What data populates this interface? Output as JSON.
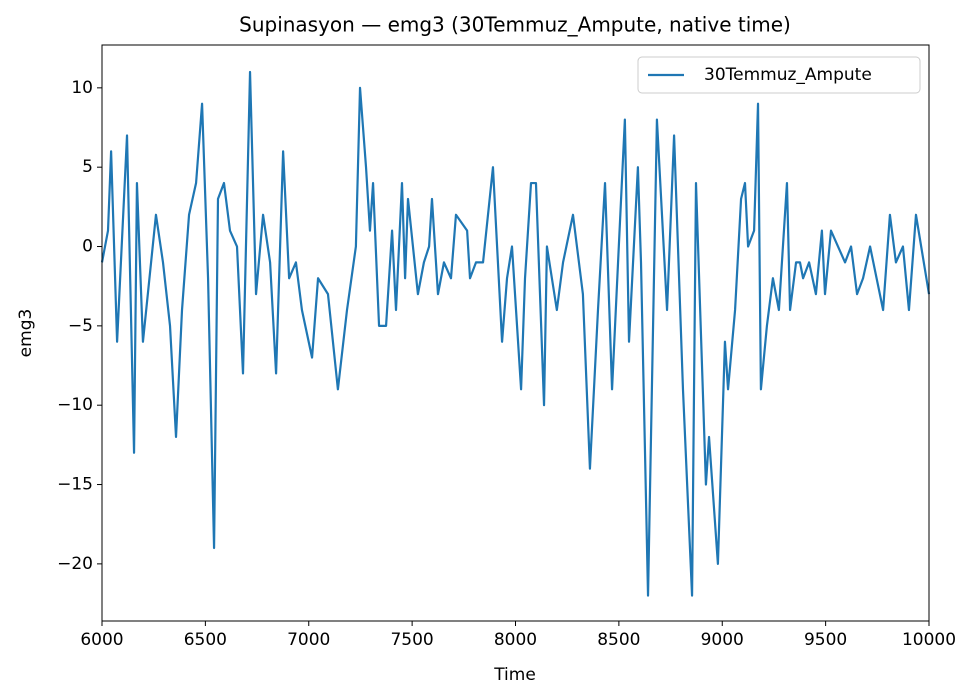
{
  "chart_data": {
    "type": "line",
    "title": "Supinasyon — emg3 (30Temmuz_Ampute, native time)",
    "x_label": "Time",
    "y_label": "emg3",
    "x": [
      6000,
      6029,
      6044,
      6073,
      6121,
      6155,
      6169,
      6198,
      6261,
      6295,
      6329,
      6358,
      6387,
      6421,
      6455,
      6484,
      6513,
      6542,
      6561,
      6590,
      6619,
      6653,
      6682,
      6716,
      6745,
      6779,
      6813,
      6842,
      6876,
      6905,
      6938,
      6967,
      7016,
      7045,
      7093,
      7141,
      7185,
      7228,
      7248,
      7277,
      7296,
      7311,
      7340,
      7374,
      7403,
      7422,
      7451,
      7466,
      7480,
      7528,
      7557,
      7582,
      7596,
      7625,
      7654,
      7688,
      7712,
      7766,
      7780,
      7809,
      7843,
      7891,
      7935,
      7959,
      7983,
      8027,
      8046,
      8075,
      8099,
      8138,
      8152,
      8200,
      8230,
      8278,
      8326,
      8360,
      8399,
      8433,
      8467,
      8496,
      8529,
      8549,
      8592,
      8607,
      8641,
      8684,
      8733,
      8767,
      8810,
      8854,
      8873,
      8921,
      8936,
      8979,
      9013,
      9028,
      9062,
      9091,
      9110,
      9125,
      9154,
      9173,
      9187,
      9216,
      9245,
      9274,
      9313,
      9328,
      9357,
      9376,
      9391,
      9420,
      9453,
      9482,
      9497,
      9526,
      9560,
      9594,
      9623,
      9652,
      9681,
      9715,
      9778,
      9811,
      9840,
      9874,
      9903,
      9937,
      10000
    ],
    "series": [
      {
        "name": "30Temmuz_Ampute",
        "color": "#1f77b4",
        "values": [
          -1,
          1,
          6,
          -6,
          7,
          -13,
          4,
          -6,
          2,
          -1,
          -5,
          -12,
          -4,
          2,
          4,
          9,
          -2,
          -19,
          3,
          4,
          1,
          0,
          -8,
          11,
          -3,
          2,
          -1,
          -8,
          6,
          -2,
          -1,
          -4,
          -7,
          -2,
          -3,
          -9,
          -4,
          0,
          10,
          5,
          1,
          4,
          -5,
          -5,
          1,
          -4,
          4,
          -2,
          3,
          -3,
          -1,
          0,
          3,
          -3,
          -1,
          -2,
          2,
          1,
          -2,
          -1,
          -1,
          5,
          -6,
          -2,
          0,
          -9,
          -2,
          4,
          4,
          -10,
          0,
          -4,
          -1,
          2,
          -3,
          -14,
          -4,
          4,
          -9,
          -1,
          8,
          -6,
          5,
          -1,
          -22,
          8,
          -4,
          7,
          -9,
          -22,
          4,
          -15,
          -12,
          -20,
          -6,
          -9,
          -4,
          3,
          4,
          0,
          1,
          9,
          -9,
          -5,
          -2,
          -4,
          4,
          -4,
          -1,
          -1,
          -2,
          -1,
          -3,
          1,
          -3,
          1,
          0,
          -1,
          0,
          -3,
          -2,
          0,
          -4,
          2,
          -1,
          0,
          -4,
          2,
          -3
        ]
      }
    ],
    "xlim": [
      6000,
      10000
    ],
    "xticks": [
      6000,
      6500,
      7000,
      7500,
      8000,
      8500,
      9000,
      9500,
      10000
    ],
    "ylim": [
      -23.6,
      12.7
    ],
    "yticks": [
      {
        "value": -20,
        "label": "−20"
      },
      {
        "value": -15,
        "label": "−15"
      },
      {
        "value": -10,
        "label": "−10"
      },
      {
        "value": -5,
        "label": "−5"
      },
      0,
      5,
      10
    ],
    "legend": "upper right"
  }
}
